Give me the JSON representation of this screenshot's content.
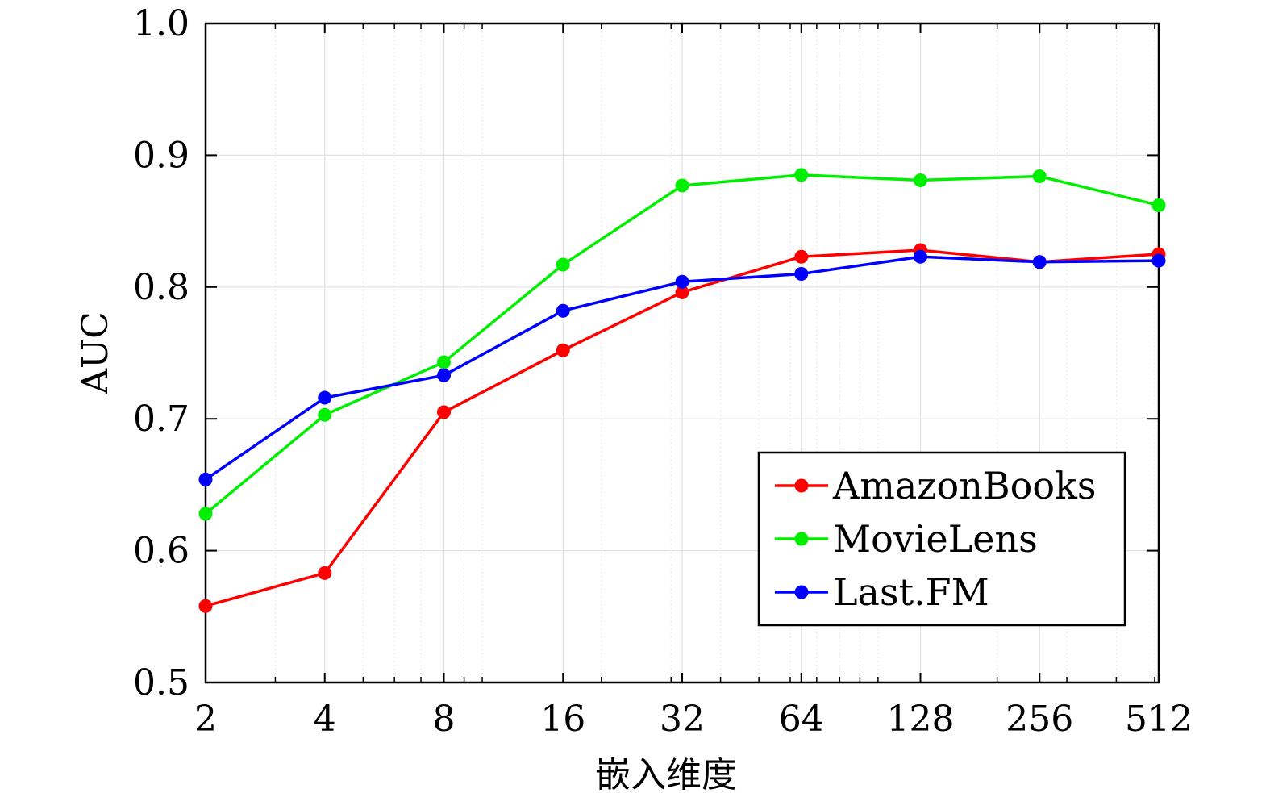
{
  "chart_data": {
    "type": "line",
    "x_scale": "log2",
    "x": [
      2,
      4,
      8,
      16,
      32,
      64,
      128,
      256,
      512
    ],
    "x_tick_labels": [
      "2",
      "4",
      "8",
      "16",
      "32",
      "64",
      "128",
      "256",
      "512"
    ],
    "xlabel": "嵌入维度",
    "ylabel": "AUC",
    "ylim": [
      0.5,
      1.0
    ],
    "y_ticks": [
      0.5,
      0.6,
      0.7,
      0.8,
      0.9,
      1.0
    ],
    "y_tick_labels": [
      "0.5",
      "0.6",
      "0.7",
      "0.8",
      "0.9",
      "1.0"
    ],
    "grid": true,
    "legend_position": "bottom-right",
    "series": [
      {
        "name": "AmazonBooks",
        "color": "#ff0000",
        "values": [
          0.558,
          0.583,
          0.705,
          0.752,
          0.796,
          0.823,
          0.828,
          0.819,
          0.825
        ]
      },
      {
        "name": "MovieLens",
        "color": "#00ee00",
        "values": [
          0.628,
          0.703,
          0.743,
          0.817,
          0.877,
          0.885,
          0.881,
          0.884,
          0.862
        ]
      },
      {
        "name": "Last.FM",
        "color": "#0000ff",
        "values": [
          0.654,
          0.716,
          0.733,
          0.782,
          0.804,
          0.81,
          0.823,
          0.819,
          0.82
        ]
      }
    ]
  }
}
